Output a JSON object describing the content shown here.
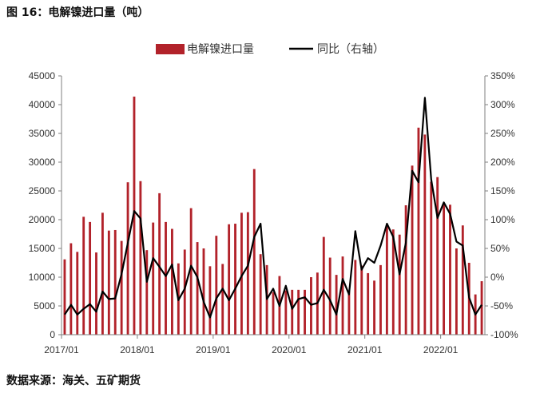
{
  "title": "图 16：电解镍进口量（吨）",
  "source": "数据来源：海关、五矿期货",
  "colors": {
    "bar": "#b2222a",
    "line": "#000000",
    "axis": "#7f7f7f"
  },
  "chart_data": {
    "type": "bar+line",
    "title": "图 16：电解镍进口量（吨）",
    "legend": [
      "电解镍进口量",
      "同比（右轴）"
    ],
    "legend_position": "top-center",
    "grid": false,
    "x_start": "2017/01",
    "x_tick_labels": [
      "2017/01",
      "2018/01",
      "2019/01",
      "2020/01",
      "2021/01",
      "2022/01"
    ],
    "y_left": {
      "min": 0,
      "max": 45000,
      "step": 5000,
      "tick_labels": [
        "0",
        "5000",
        "10000",
        "15000",
        "20000",
        "25000",
        "30000",
        "35000",
        "40000",
        "45000"
      ]
    },
    "y_right": {
      "min": -100,
      "max": 350,
      "step": 50,
      "tick_labels": [
        "-100%",
        "-50%",
        "0%",
        "50%",
        "100%",
        "150%",
        "200%",
        "250%",
        "300%",
        "350%"
      ]
    },
    "series": [
      {
        "name": "电解镍进口量",
        "type": "bar",
        "axis": "left",
        "values": [
          13100,
          15900,
          14400,
          20500,
          19600,
          14300,
          21200,
          18100,
          18200,
          16300,
          26500,
          41400,
          26700,
          14700,
          19500,
          24600,
          19600,
          18400,
          12400,
          14800,
          22000,
          16100,
          15000,
          11900,
          17200,
          12300,
          19200,
          19300,
          21200,
          21300,
          28800,
          14000,
          12100,
          7400,
          10200,
          7700,
          7800,
          7800,
          7800,
          10000,
          10800,
          17000,
          13400,
          10400,
          13600,
          7700,
          13000,
          12000,
          10700,
          9400,
          12100,
          19100,
          18300,
          17400,
          22500,
          29400,
          36000,
          34800,
          26600,
          27400,
          22900,
          22600,
          15000,
          19000,
          12500,
          7000,
          9300
        ]
      },
      {
        "name": "同比（右轴）",
        "type": "line",
        "axis": "right",
        "values": [
          -65,
          -48,
          -65,
          -55,
          -47,
          -60,
          -25,
          -38,
          -37,
          5,
          60,
          115,
          102,
          -8,
          33,
          18,
          2,
          22,
          -40,
          -20,
          20,
          0,
          -43,
          -70,
          -37,
          -20,
          -40,
          -20,
          2,
          20,
          70,
          93,
          -38,
          -20,
          -50,
          -15,
          -55,
          -38,
          -35,
          -48,
          -45,
          -22,
          -40,
          -65,
          -3,
          -30,
          80,
          13,
          33,
          25,
          55,
          93,
          70,
          5,
          60,
          185,
          165,
          312,
          170,
          103,
          130,
          110,
          62,
          55,
          -35,
          -65,
          -48
        ]
      }
    ]
  }
}
